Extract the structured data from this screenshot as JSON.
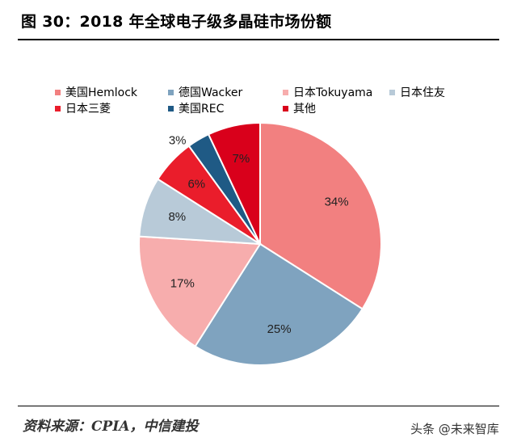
{
  "figure": {
    "title": "图 30：2018 年全球电子级多晶硅市场份额",
    "source": "资料来源：CPIA，中信建投",
    "watermark": "头条 @未来智库"
  },
  "chart_data": {
    "type": "pie",
    "legend_position": "top",
    "start_angle_deg": 0,
    "direction": "clockwise",
    "slices": [
      {
        "name": "美国Hemlock",
        "value": 34,
        "label": "34%",
        "color": "#f28080"
      },
      {
        "name": "德国Wacker",
        "value": 25,
        "label": "25%",
        "color": "#7fa3bf"
      },
      {
        "name": "日本Tokuyama",
        "value": 17,
        "label": "17%",
        "color": "#f7adad"
      },
      {
        "name": "日本住友",
        "value": 8,
        "label": "8%",
        "color": "#b8cad8"
      },
      {
        "name": "日本三菱",
        "value": 6,
        "label": "6%",
        "color": "#ea1d2b"
      },
      {
        "name": "美国REC",
        "value": 3,
        "label": "3%",
        "color": "#1f5a85"
      },
      {
        "name": "其他",
        "value": 7,
        "label": "7%",
        "color": "#d9001b"
      }
    ]
  }
}
